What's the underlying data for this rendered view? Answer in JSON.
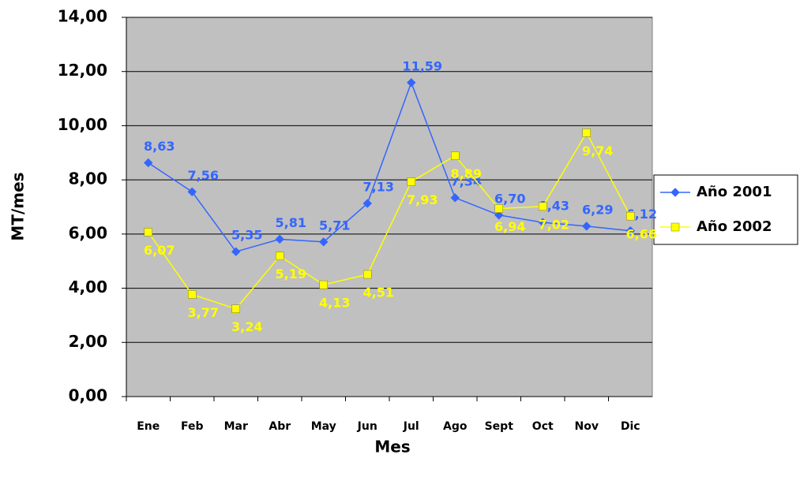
{
  "chart_data": {
    "type": "line",
    "x_label": "Mes",
    "y_label": "MT/mes",
    "categories": [
      "Ene",
      "Feb",
      "Mar",
      "Abr",
      "May",
      "Jun",
      "Jul",
      "Ago",
      "Sept",
      "Oct",
      "Nov",
      "Dic"
    ],
    "series": [
      {
        "name": "Año 2001",
        "color": "#3366ff",
        "marker": "diamond",
        "values": [
          8.63,
          7.56,
          5.35,
          5.81,
          5.71,
          7.13,
          11.59,
          7.34,
          6.7,
          6.43,
          6.29,
          6.12
        ],
        "value_labels": [
          "8,63",
          "7,56",
          "5,35",
          "5,81",
          "5,71",
          "7,13",
          "11,59",
          "7,34",
          "6,70",
          "6,43",
          "6,29",
          "6,12"
        ]
      },
      {
        "name": "Año 2002",
        "color": "#ffff00",
        "marker": "square",
        "values": [
          6.07,
          3.77,
          3.24,
          5.19,
          4.13,
          4.51,
          7.93,
          8.89,
          6.94,
          7.02,
          9.74,
          6.66
        ],
        "value_labels": [
          "6,07",
          "3,77",
          "3,24",
          "5,19",
          "4,13",
          "4,51",
          "7,93",
          "8,89",
          "6,94",
          "7,02",
          "9,74",
          "6,66"
        ]
      }
    ],
    "ylim": [
      0,
      14
    ],
    "yticks": [
      {
        "value": 0,
        "label": "0,00"
      },
      {
        "value": 2,
        "label": "2,00"
      },
      {
        "value": 4,
        "label": "4,00"
      },
      {
        "value": 6,
        "label": "6,00"
      },
      {
        "value": 8,
        "label": "8,00"
      },
      {
        "value": 10,
        "label": "10,00"
      },
      {
        "value": 12,
        "label": "12,00"
      },
      {
        "value": 14,
        "label": "14,00"
      }
    ],
    "grid": true,
    "legend": "right",
    "plot_background": "#c0c0c0"
  }
}
